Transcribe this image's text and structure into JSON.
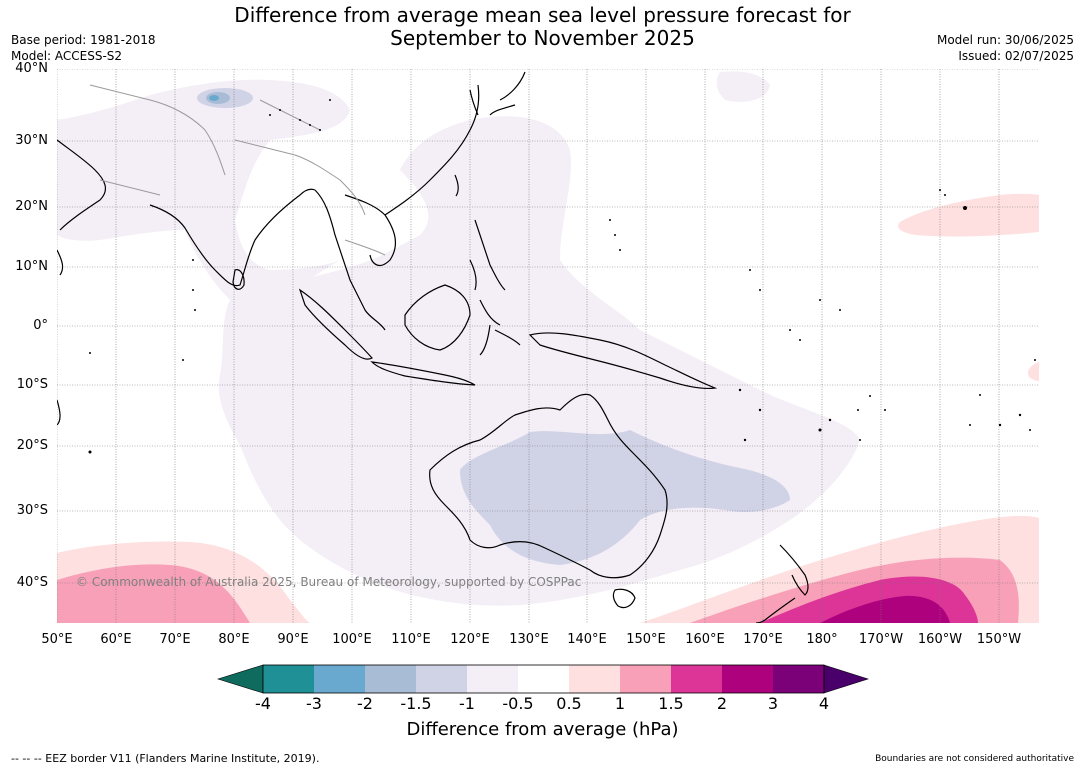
{
  "title": {
    "line1": "Difference from average mean sea level pressure forecast for",
    "line2": "September to November 2025"
  },
  "meta_left": {
    "base_period": "Base period: 1981-2018",
    "model": "Model: ACCESS-S2"
  },
  "meta_right": {
    "model_run": "Model run: 30/06/2025",
    "issued": "Issued: 02/07/2025"
  },
  "lat_labels": [
    "40°N",
    "30°N",
    "20°N",
    "10°N",
    "0°",
    "10°S",
    "20°S",
    "30°S",
    "40°S"
  ],
  "lon_labels": [
    "50°E",
    "60°E",
    "70°E",
    "80°E",
    "90°E",
    "100°E",
    "110°E",
    "120°E",
    "130°E",
    "140°E",
    "150°E",
    "160°E",
    "170°E",
    "180°",
    "170°W",
    "160°W",
    "150°W"
  ],
  "copyright": "© Commonwealth of Australia 2025, Bureau of Meteorology, supported by COSPPac",
  "colorbar": {
    "ticks": [
      "-4",
      "-3",
      "-2",
      "-1.5",
      "-1",
      "-0.5",
      "0.5",
      "1",
      "1.5",
      "2",
      "3",
      "4"
    ],
    "colors": [
      "#0e6b5e",
      "#1f9095",
      "#6aa9cf",
      "#a9bcd6",
      "#d0d2e6",
      "#f4eef6",
      "#ffffff",
      "#fde0df",
      "#f9a0b9",
      "#dd3497",
      "#ae017e",
      "#7a0177",
      "#49006a"
    ],
    "label": "Difference from average (hPa)"
  },
  "footer": {
    "eez": "--  --  -- EEZ border V11 (Flanders Marine Institute, 2019).",
    "boundaries": "Boundaries are not considered authoritative"
  }
}
